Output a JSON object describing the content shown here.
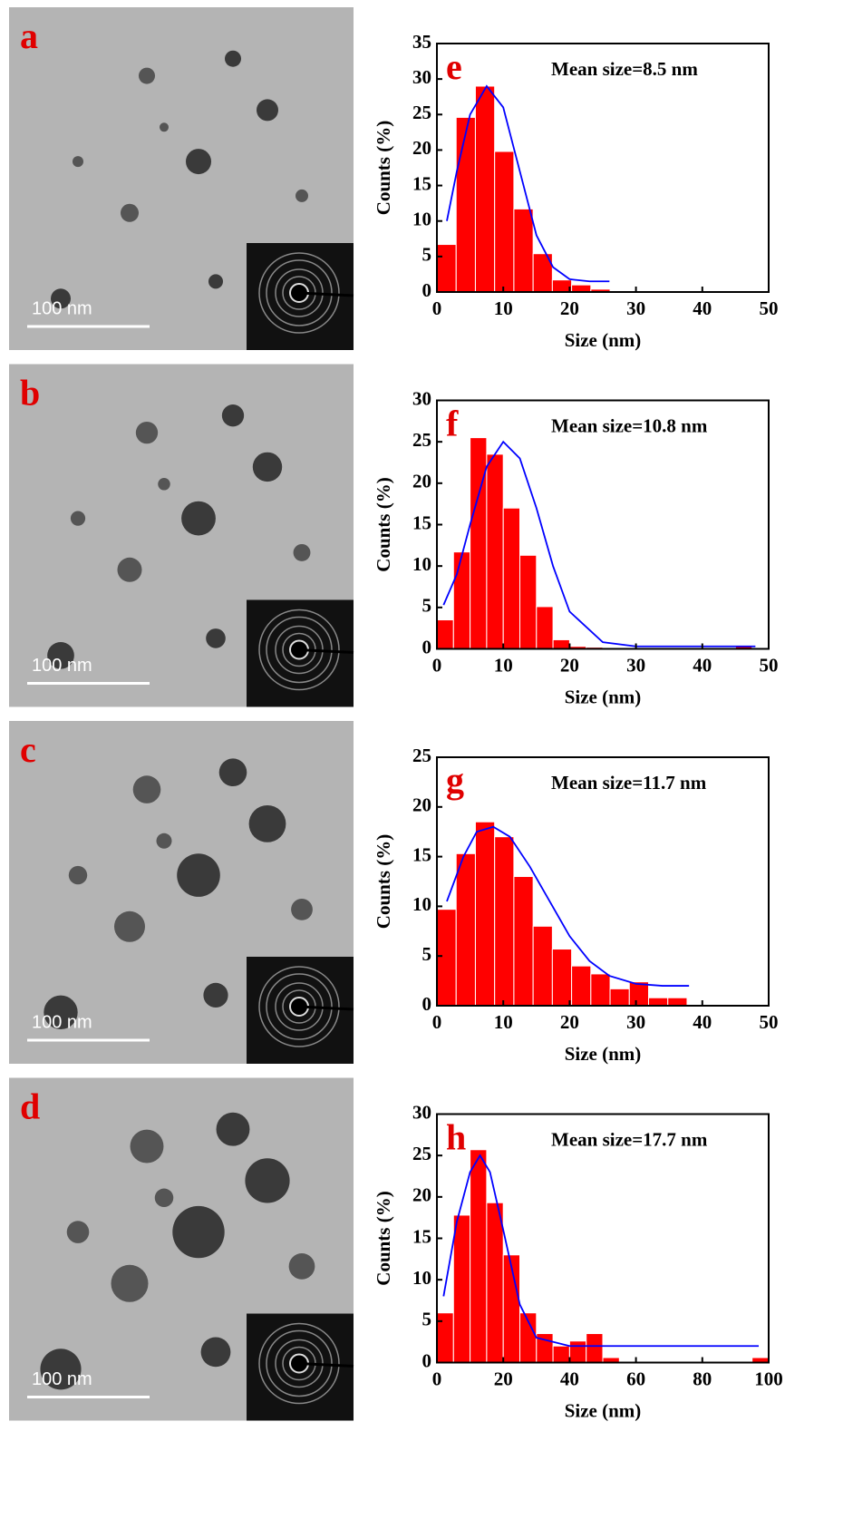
{
  "panels": [
    {
      "label": "a",
      "scale_bar": "100 nm"
    },
    {
      "label": "b",
      "scale_bar": "100 nm"
    },
    {
      "label": "c",
      "scale_bar": "100 nm"
    },
    {
      "label": "d",
      "scale_bar": "100 nm"
    }
  ],
  "chart_data": [
    {
      "type": "histogram",
      "panel_label": "e",
      "annotation": "Mean size=8.5 nm",
      "xlabel": "Size (nm)",
      "ylabel": "Counts (%)",
      "bins": [
        0,
        2.9,
        5.8,
        8.7,
        11.6,
        14.5,
        17.4,
        20.3,
        23.2,
        26.1
      ],
      "values": [
        6.7,
        24.6,
        29,
        19.8,
        11.7,
        5.4,
        1.7,
        1,
        0.4
      ],
      "color": "#ff0000",
      "fit": {
        "x": [
          1.5,
          3,
          5,
          7.5,
          10,
          12.5,
          15,
          17.5,
          20,
          23,
          26
        ],
        "y": [
          10,
          17,
          25,
          29,
          26,
          17,
          8,
          3.5,
          1.8,
          1.5,
          1.5
        ],
        "color": "#0000ff"
      },
      "xlim": [
        0,
        50
      ],
      "ylim": [
        0,
        35
      ],
      "xticks": [
        0,
        10,
        20,
        30,
        40,
        50
      ],
      "yticks": [
        0,
        5,
        10,
        15,
        20,
        25,
        30,
        35
      ]
    },
    {
      "type": "histogram",
      "panel_label": "f",
      "annotation": "Mean size=10.8 nm",
      "xlabel": "Size (nm)",
      "ylabel": "Counts (%)",
      "bins": [
        0,
        2.5,
        5,
        7.5,
        10,
        12.5,
        15,
        17.5,
        20,
        22.5,
        25,
        27.5,
        30,
        32.5,
        35,
        37.5,
        40,
        42.5,
        45,
        47.5,
        50
      ],
      "values": [
        3.5,
        11.7,
        25.5,
        23.5,
        17,
        11.3,
        5.1,
        1.1,
        0.3,
        0.2,
        0,
        0,
        0,
        0,
        0,
        0,
        0,
        0,
        0.4,
        0
      ],
      "color": "#ff0000",
      "fit": {
        "x": [
          1,
          3,
          5,
          7.5,
          10,
          12.5,
          15,
          17.5,
          20,
          25,
          30,
          40,
          48
        ],
        "y": [
          5.3,
          9,
          15,
          22,
          25,
          23,
          17,
          10,
          4.5,
          0.8,
          0.3,
          0.3,
          0.3
        ],
        "color": "#0000ff"
      },
      "xlim": [
        0,
        50
      ],
      "ylim": [
        0,
        30
      ],
      "xticks": [
        0,
        10,
        20,
        30,
        40,
        50
      ],
      "yticks": [
        0,
        5,
        10,
        15,
        20,
        25,
        30
      ]
    },
    {
      "type": "histogram",
      "panel_label": "g",
      "annotation": "Mean size=11.7 nm",
      "xlabel": "Size (nm)",
      "ylabel": "Counts (%)",
      "bins": [
        0,
        2.9,
        5.8,
        8.7,
        11.6,
        14.5,
        17.4,
        20.3,
        23.2,
        26.1,
        29,
        31.9,
        34.8,
        37.7
      ],
      "values": [
        9.7,
        15.3,
        18.5,
        17,
        13,
        8,
        5.7,
        4,
        3.2,
        1.7,
        2.4,
        0.8,
        0.8
      ],
      "color": "#ff0000",
      "fit": {
        "x": [
          1.5,
          4,
          6,
          8.5,
          11,
          14,
          17,
          20,
          23,
          26,
          30,
          34,
          38
        ],
        "y": [
          10.5,
          15,
          17.5,
          18,
          17,
          14,
          10.5,
          7,
          4.5,
          3,
          2.2,
          2,
          2
        ],
        "color": "#0000ff"
      },
      "xlim": [
        0,
        50
      ],
      "ylim": [
        0,
        25
      ],
      "xticks": [
        0,
        10,
        20,
        30,
        40,
        50
      ],
      "yticks": [
        0,
        5,
        10,
        15,
        20,
        25
      ]
    },
    {
      "type": "histogram",
      "panel_label": "h",
      "annotation": "Mean size=17.7 nm",
      "xlabel": "Size (nm)",
      "ylabel": "Counts (%)",
      "bins": [
        0,
        5,
        10,
        15,
        20,
        25,
        30,
        35,
        40,
        45,
        50,
        55,
        60,
        65,
        70,
        75,
        80,
        85,
        90,
        95,
        100
      ],
      "values": [
        6,
        17.8,
        25.7,
        19.3,
        13,
        6,
        3.5,
        2,
        2.6,
        3.5,
        0.6,
        0,
        0,
        0,
        0,
        0,
        0,
        0,
        0,
        0.6
      ],
      "color": "#ff0000",
      "fit": {
        "x": [
          2,
          6,
          10,
          13,
          16,
          20,
          25,
          30,
          40,
          60,
          97
        ],
        "y": [
          8,
          17,
          23,
          25,
          23,
          16,
          7,
          3,
          2,
          2,
          2
        ],
        "color": "#0000ff"
      },
      "xlim": [
        0,
        100
      ],
      "ylim": [
        0,
        30
      ],
      "xticks": [
        0,
        20,
        40,
        60,
        80,
        100
      ],
      "yticks": [
        0,
        5,
        10,
        15,
        20,
        25,
        30
      ]
    }
  ]
}
